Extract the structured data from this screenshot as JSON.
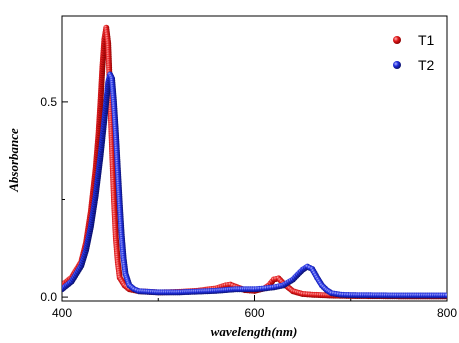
{
  "chart_data": {
    "type": "scatter",
    "xlabel": "wavelength(nm)",
    "ylabel": "Absorbance",
    "xlim": [
      400,
      800
    ],
    "ylim": [
      -0.01,
      0.72
    ],
    "x_ticks": [
      400,
      600,
      800
    ],
    "x_tick_labels": [
      "400",
      "600",
      "800"
    ],
    "y_ticks": [
      0.0,
      0.5
    ],
    "y_tick_labels": [
      "0.0",
      "0.5"
    ],
    "legend_position": "top-right",
    "grid": false,
    "series": [
      {
        "name": "T1",
        "color": "#e31a1c",
        "marker": "sphere",
        "x": [
          400,
          410,
          420,
          425,
          430,
          435,
          438,
          440,
          442,
          444,
          446,
          448,
          450,
          452,
          454,
          456,
          458,
          460,
          465,
          470,
          480,
          500,
          520,
          540,
          560,
          570,
          575,
          580,
          590,
          600,
          610,
          615,
          620,
          625,
          630,
          640,
          650,
          660,
          680,
          700,
          750,
          800
        ],
        "y": [
          0.03,
          0.05,
          0.09,
          0.14,
          0.22,
          0.33,
          0.42,
          0.5,
          0.59,
          0.66,
          0.69,
          0.65,
          0.52,
          0.38,
          0.25,
          0.15,
          0.09,
          0.05,
          0.03,
          0.02,
          0.015,
          0.012,
          0.013,
          0.016,
          0.022,
          0.03,
          0.032,
          0.027,
          0.018,
          0.016,
          0.022,
          0.03,
          0.045,
          0.048,
          0.035,
          0.015,
          0.008,
          0.006,
          0.004,
          0.003,
          0.002,
          0.002
        ]
      },
      {
        "name": "T2",
        "color": "#1f2ee0",
        "marker": "sphere",
        "x": [
          400,
          410,
          420,
          425,
          430,
          435,
          440,
          443,
          446,
          448,
          450,
          452,
          454,
          456,
          458,
          460,
          462,
          464,
          466,
          470,
          475,
          480,
          500,
          520,
          540,
          560,
          580,
          600,
          610,
          620,
          630,
          640,
          645,
          650,
          655,
          660,
          665,
          670,
          675,
          680,
          690,
          700,
          750,
          800
        ],
        "y": [
          0.02,
          0.04,
          0.08,
          0.12,
          0.18,
          0.26,
          0.36,
          0.43,
          0.5,
          0.55,
          0.57,
          0.56,
          0.5,
          0.42,
          0.33,
          0.24,
          0.16,
          0.1,
          0.06,
          0.03,
          0.02,
          0.015,
          0.012,
          0.012,
          0.014,
          0.016,
          0.02,
          0.02,
          0.022,
          0.025,
          0.03,
          0.045,
          0.058,
          0.07,
          0.078,
          0.072,
          0.05,
          0.03,
          0.018,
          0.01,
          0.006,
          0.005,
          0.004,
          0.004
        ]
      }
    ]
  }
}
